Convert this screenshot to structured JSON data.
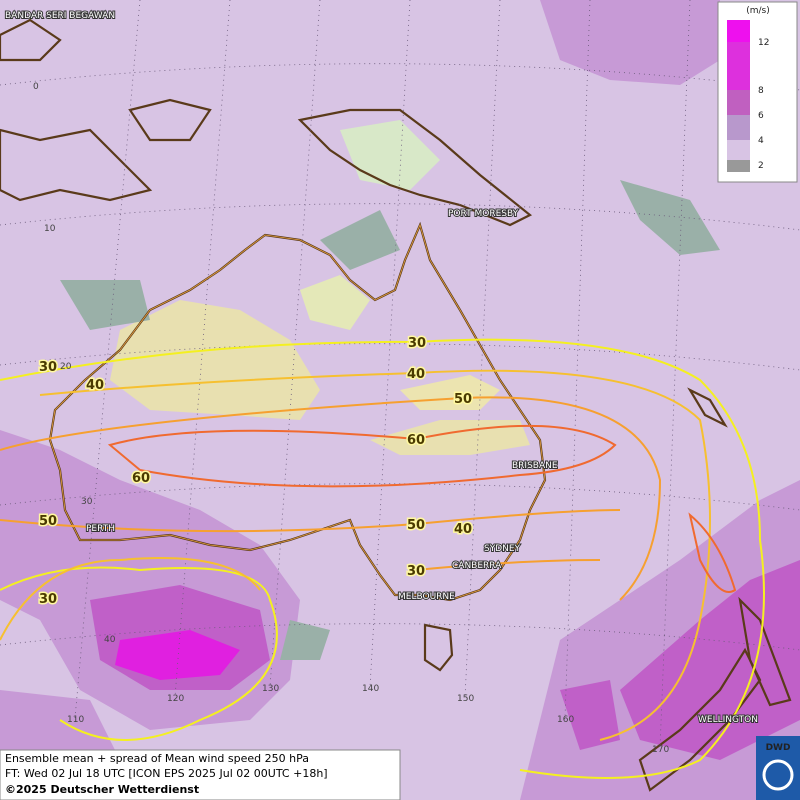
{
  "cities": [
    "BANDAR SERI BEGAWAN",
    "PORT MORESBY",
    "BRISBANE",
    "SYDNEY",
    "CANBERRA",
    "MELBOURNE",
    "PERTH",
    "WELLINGTON"
  ],
  "latitude_labels": [
    "0",
    "10",
    "20",
    "30",
    "40"
  ],
  "longitude_labels": [
    "110",
    "120",
    "130",
    "140",
    "150",
    "160",
    "170"
  ],
  "contour_labels": [
    "30",
    "30",
    "40",
    "40",
    "50",
    "60",
    "60",
    "50",
    "50",
    "40",
    "30",
    "30"
  ],
  "legend": {
    "unit": "(m/s)",
    "ticks": [
      "12",
      "8",
      "6",
      "4",
      "2"
    ]
  },
  "footer": {
    "line1": "Ensemble mean + spread of Mean wind speed 250 hPa",
    "line2": "FT: Wed 02 Jul 18 UTC [ICON EPS 2025 Jul 02 00UTC +18h]",
    "copyright": "©2025 Deutscher Wetterdienst",
    "logo": "DWD"
  }
}
